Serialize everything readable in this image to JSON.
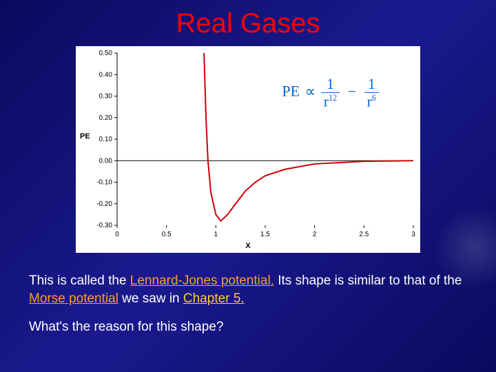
{
  "title": "Real Gases",
  "formula": {
    "lhs": "PE",
    "prop": "∝",
    "term1_num": "1",
    "term1_den_base": "r",
    "term1_den_exp": "12",
    "minus": "−",
    "term2_num": "1",
    "term2_den_base": "r",
    "term2_den_exp": "6"
  },
  "chart": {
    "type": "line",
    "xlabel": "X",
    "ylabel": "PE",
    "xlim": [
      0,
      3
    ],
    "ylim": [
      -0.3,
      0.5
    ],
    "xticks": [
      0,
      0.5,
      1,
      1.5,
      2,
      2.5,
      3
    ],
    "xtick_labels": [
      "0",
      "0.5",
      "1",
      "1.5",
      "2",
      "2.5",
      "3"
    ],
    "yticks": [
      -0.3,
      -0.2,
      -0.1,
      0.0,
      0.1,
      0.2,
      0.3,
      0.4,
      0.5
    ],
    "ytick_labels": [
      "-0.30",
      "-0.20",
      "-0.10",
      "0.00",
      "0.10",
      "0.20",
      "0.30",
      "0.40",
      "0.50"
    ],
    "line_color": "#cc0000",
    "line_width": 2,
    "background_color": "#ffffff",
    "axis_color": "#000000",
    "tick_font_size": 10,
    "curve_points": [
      [
        0.88,
        0.5
      ],
      [
        0.9,
        0.2
      ],
      [
        0.92,
        0.0
      ],
      [
        0.95,
        -0.15
      ],
      [
        1.0,
        -0.25
      ],
      [
        1.05,
        -0.28
      ],
      [
        1.12,
        -0.25
      ],
      [
        1.2,
        -0.2
      ],
      [
        1.3,
        -0.14
      ],
      [
        1.4,
        -0.1
      ],
      [
        1.5,
        -0.07
      ],
      [
        1.7,
        -0.04
      ],
      [
        2.0,
        -0.015
      ],
      [
        2.5,
        -0.003
      ],
      [
        3.0,
        0.0
      ]
    ]
  },
  "body1_a": "This is called the ",
  "body1_lj": "Lennard-Jones potential.",
  "body1_b": "  Its shape is similar to that of the ",
  "body1_mp": "Morse potential",
  "body1_c": " we saw in ",
  "body1_ch": "Chapter 5.",
  "question": "What's the reason for this shape?"
}
